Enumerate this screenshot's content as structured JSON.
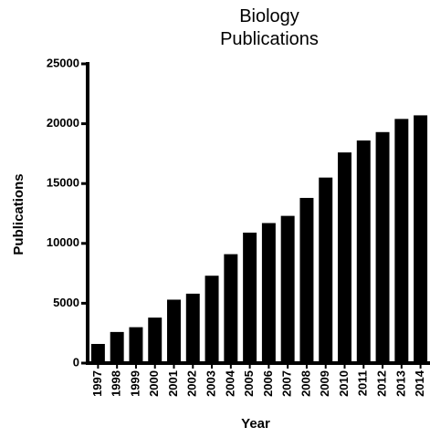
{
  "chart_data": {
    "type": "bar",
    "title": "Biology\nPublications",
    "x_label": "Year",
    "y_label": "Publications",
    "categories": [
      "1997",
      "1998",
      "1999",
      "2000",
      "2001",
      "2002",
      "2003",
      "2004",
      "2005",
      "2006",
      "2007",
      "2008",
      "2009",
      "2010",
      "2011",
      "2012",
      "2013",
      "2014"
    ],
    "values": [
      1600,
      2600,
      3000,
      3800,
      5300,
      5800,
      7300,
      9100,
      10900,
      11700,
      12300,
      13800,
      15500,
      17600,
      18600,
      19300,
      20400,
      20700
    ],
    "color": "#000000",
    "ylim": [
      0,
      25000
    ],
    "yticks": [
      0,
      5000,
      10000,
      15000,
      20000,
      25000
    ],
    "grid": false
  }
}
